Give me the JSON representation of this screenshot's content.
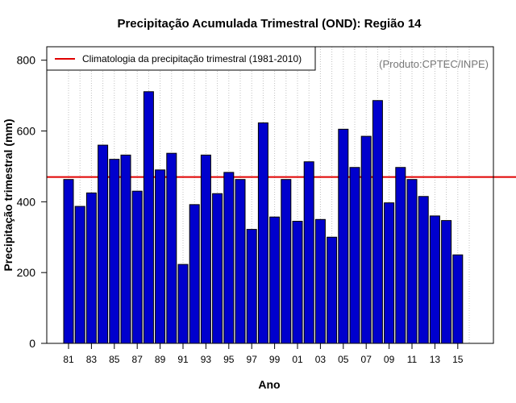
{
  "chart_data": {
    "type": "bar",
    "title": "Precipitação Acumulada Trimestral (OND): Região 14",
    "xlabel": "Ano",
    "ylabel": "Precipitação trimestral (mm)",
    "credit": "(Produto:CPTEC/INPE)",
    "categories": [
      "81",
      "82",
      "83",
      "84",
      "85",
      "86",
      "87",
      "88",
      "89",
      "90",
      "91",
      "92",
      "93",
      "94",
      "95",
      "96",
      "97",
      "98",
      "99",
      "00",
      "01",
      "02",
      "03",
      "04",
      "05",
      "06",
      "07",
      "08",
      "09",
      "10",
      "11",
      "12",
      "13",
      "14",
      "15"
    ],
    "values": [
      463,
      387,
      425,
      560,
      520,
      532,
      430,
      711,
      490,
      537,
      223,
      392,
      532,
      423,
      483,
      463,
      322,
      623,
      357,
      463,
      345,
      513,
      350,
      300,
      605,
      497,
      585,
      686,
      397,
      497,
      463,
      415,
      360,
      347,
      250
    ],
    "xtick_labels": [
      "81",
      "83",
      "85",
      "87",
      "89",
      "91",
      "93",
      "95",
      "97",
      "99",
      "01",
      "03",
      "05",
      "07",
      "09",
      "11",
      "13",
      "15"
    ],
    "yticks": [
      0,
      200,
      400,
      600,
      800
    ],
    "ylim": [
      0,
      838
    ],
    "grid": true,
    "climatology": {
      "label": "Climatologia da precipitação trimestral (1981-2010)",
      "value": 470
    },
    "legend_position": "top-left",
    "colors": {
      "bar_fill": "#0000CD",
      "bar_edge": "#000000",
      "climatology_line": "#E00000",
      "grid": "#C0C0C0",
      "credit_text": "#777777"
    }
  }
}
